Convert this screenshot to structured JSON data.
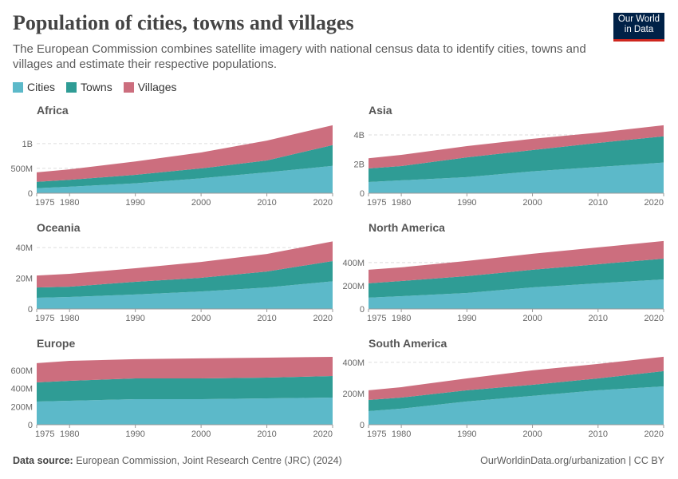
{
  "header": {
    "title": "Population of cities, towns and villages",
    "subtitle": "The European Commission combines satellite imagery with national census data to identify cities, towns and villages and estimate their respective populations.",
    "logo": "Our World in Data"
  },
  "legend": [
    {
      "label": "Cities",
      "color": "#5cb9c9"
    },
    {
      "label": "Towns",
      "color": "#2f9c95"
    },
    {
      "label": "Villages",
      "color": "#cc6e7e"
    }
  ],
  "footer": {
    "source_label": "Data source:",
    "source": "European Commission, Joint Research Centre (JRC) (2024)",
    "url": "OurWorldinData.org/urbanization | CC BY"
  },
  "chart_data": [
    {
      "type": "area",
      "stacked": true,
      "title": "Africa",
      "x": [
        1975,
        1980,
        1990,
        2000,
        2010,
        2020
      ],
      "unit": "millions",
      "ylim": [
        0,
        1480
      ],
      "yticks": [
        0,
        500,
        1000
      ],
      "ytick_labels": [
        "0",
        "500M",
        "1B"
      ],
      "series": [
        {
          "name": "Cities",
          "values": [
            100,
            130,
            200,
            300,
            420,
            550
          ]
        },
        {
          "name": "Towns",
          "values": [
            130,
            140,
            170,
            200,
            240,
            420
          ]
        },
        {
          "name": "Villages",
          "values": [
            190,
            210,
            270,
            320,
            400,
            400
          ]
        }
      ]
    },
    {
      "type": "area",
      "stacked": true,
      "title": "Asia",
      "x": [
        1975,
        1980,
        1990,
        2000,
        2010,
        2020
      ],
      "unit": "millions",
      "ylim": [
        0,
        5040
      ],
      "yticks": [
        0,
        2000,
        4000
      ],
      "ytick_labels": [
        "0",
        "2B",
        "4B"
      ],
      "series": [
        {
          "name": "Cities",
          "values": [
            770,
            880,
            1100,
            1500,
            1800,
            2100
          ]
        },
        {
          "name": "Towns",
          "values": [
            930,
            980,
            1360,
            1460,
            1650,
            1800
          ]
        },
        {
          "name": "Villages",
          "values": [
            700,
            770,
            770,
            770,
            710,
            760
          ]
        }
      ]
    },
    {
      "type": "area",
      "stacked": true,
      "title": "Oceania",
      "x": [
        1975,
        1980,
        1990,
        2000,
        2010,
        2020
      ],
      "unit": "millions",
      "ylim": [
        0,
        46.8
      ],
      "yticks": [
        0,
        20,
        40
      ],
      "ytick_labels": [
        "0",
        "20M",
        "40M"
      ],
      "series": [
        {
          "name": "Cities",
          "values": [
            7.3,
            7.8,
            9.4,
            11.4,
            14,
            18
          ]
        },
        {
          "name": "Towns",
          "values": [
            6.7,
            6.7,
            8.3,
            8.9,
            10.4,
            13.2
          ]
        },
        {
          "name": "Villages",
          "values": [
            7.8,
            8.4,
            8.8,
            10.3,
            11.4,
            12.8
          ]
        }
      ]
    },
    {
      "type": "area",
      "stacked": true,
      "title": "North America",
      "x": [
        1975,
        1980,
        1990,
        2000,
        2010,
        2020
      ],
      "unit": "millions",
      "ylim": [
        0,
        620
      ],
      "yticks": [
        0,
        200,
        400
      ],
      "ytick_labels": [
        "0",
        "200M",
        "400M"
      ],
      "series": [
        {
          "name": "Cities",
          "values": [
            97,
            110,
            138,
            186,
            221,
            255
          ]
        },
        {
          "name": "Towns",
          "values": [
            124,
            131,
            145,
            152,
            165,
            179
          ]
        },
        {
          "name": "Villages",
          "values": [
            117,
            118,
            131,
            138,
            145,
            152
          ]
        }
      ]
    },
    {
      "type": "area",
      "stacked": true,
      "title": "Europe",
      "x": [
        1975,
        1980,
        1990,
        2000,
        2010,
        2020
      ],
      "unit": "millions",
      "ylim": [
        0,
        794
      ],
      "yticks": [
        0,
        200,
        400,
        600
      ],
      "ytick_labels": [
        "0",
        "200M",
        "400M",
        "600M"
      ],
      "series": [
        {
          "name": "Cities",
          "values": [
            256,
            265,
            282,
            282,
            291,
            300
          ]
        },
        {
          "name": "Towns",
          "values": [
            212,
            220,
            230,
            230,
            230,
            238
          ]
        },
        {
          "name": "Villages",
          "values": [
            212,
            221,
            212,
            221,
            220,
            212
          ]
        }
      ]
    },
    {
      "type": "area",
      "stacked": true,
      "title": "South America",
      "x": [
        1975,
        1980,
        1990,
        2000,
        2010,
        2020
      ],
      "unit": "millions",
      "ylim": [
        0,
        461
      ],
      "yticks": [
        0,
        200,
        400
      ],
      "ytick_labels": [
        "0",
        "200M",
        "400M"
      ],
      "series": [
        {
          "name": "Cities",
          "values": [
            87,
            103,
            149,
            185,
            221,
            246
          ]
        },
        {
          "name": "Towns",
          "values": [
            72,
            71,
            72,
            71,
            76,
            98
          ]
        },
        {
          "name": "Villages",
          "values": [
            62,
            67,
            76,
            93,
            93,
            92
          ]
        }
      ]
    }
  ],
  "xtick_labels": [
    "1975",
    "1980",
    "1990",
    "2000",
    "2010",
    "2020"
  ]
}
